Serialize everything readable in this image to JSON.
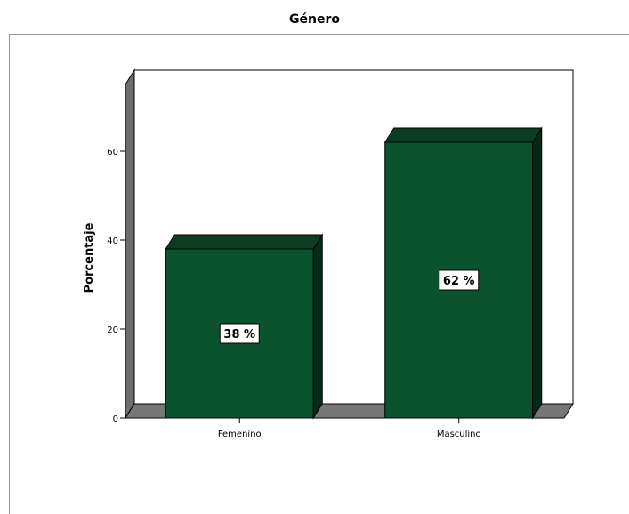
{
  "chart_data": {
    "type": "bar",
    "title": "Género",
    "xlabel": "",
    "ylabel": "Porcentaje",
    "categories": [
      "Femenino",
      "Masculino"
    ],
    "values": [
      38,
      62
    ],
    "data_labels": [
      "38 %",
      "62 %"
    ],
    "ylim": [
      0,
      75
    ],
    "yticks": [
      0,
      20,
      40,
      60
    ],
    "grid": false,
    "legend": "none",
    "colors": {
      "bar_front": "#0b532e",
      "bar_top": "#0a3d23",
      "bar_side": "#062a18",
      "wall_side": "#6e6e6e",
      "floor": "#777777",
      "wall_back": "#ffffff"
    }
  }
}
